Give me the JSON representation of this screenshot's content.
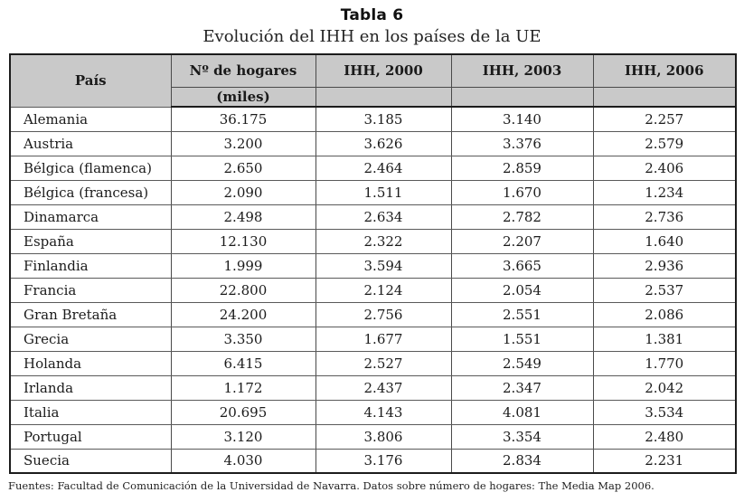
{
  "title": "Tabla 6",
  "subtitle": "Evolución del IHH en los países de la UE",
  "footer": "Fuentes: Facultad de Comunicación de la Universidad de Navarra. Datos sobre número  de hogares: The Media Map 2006.",
  "colors": {
    "header_bg": "#c9c9c9",
    "outer_border": "#1c1c1c",
    "inner_border": "#4a4a4a"
  },
  "table": {
    "header": {
      "pais": "País",
      "hogares_line1": "Nº de hogares",
      "hogares_line2": "(miles)",
      "ihh2000": "IHH, 2000",
      "ihh2003": "IHH, 2003",
      "ihh2006": "IHH, 2006"
    },
    "rows": [
      {
        "pais": "Alemania",
        "hogares": "36.175",
        "ihh2000": "3.185",
        "ihh2003": "3.140",
        "ihh2006": "2.257"
      },
      {
        "pais": "Austria",
        "hogares": "3.200",
        "ihh2000": "3.626",
        "ihh2003": "3.376",
        "ihh2006": "2.579"
      },
      {
        "pais": "Bélgica (flamenca)",
        "hogares": "2.650",
        "ihh2000": "2.464",
        "ihh2003": "2.859",
        "ihh2006": "2.406"
      },
      {
        "pais": "Bélgica (francesa)",
        "hogares": "2.090",
        "ihh2000": "1.511",
        "ihh2003": "1.670",
        "ihh2006": "1.234"
      },
      {
        "pais": "Dinamarca",
        "hogares": "2.498",
        "ihh2000": "2.634",
        "ihh2003": "2.782",
        "ihh2006": "2.736"
      },
      {
        "pais": "España",
        "hogares": "12.130",
        "ihh2000": "2.322",
        "ihh2003": "2.207",
        "ihh2006": "1.640"
      },
      {
        "pais": "Finlandia",
        "hogares": "1.999",
        "ihh2000": "3.594",
        "ihh2003": "3.665",
        "ihh2006": "2.936"
      },
      {
        "pais": "Francia",
        "hogares": "22.800",
        "ihh2000": "2.124",
        "ihh2003": "2.054",
        "ihh2006": "2.537"
      },
      {
        "pais": "Gran Bretaña",
        "hogares": "24.200",
        "ihh2000": "2.756",
        "ihh2003": "2.551",
        "ihh2006": "2.086"
      },
      {
        "pais": "Grecia",
        "hogares": "3.350",
        "ihh2000": "1.677",
        "ihh2003": "1.551",
        "ihh2006": "1.381"
      },
      {
        "pais": "Holanda",
        "hogares": "6.415",
        "ihh2000": "2.527",
        "ihh2003": "2.549",
        "ihh2006": "1.770"
      },
      {
        "pais": "Irlanda",
        "hogares": "1.172",
        "ihh2000": "2.437",
        "ihh2003": "2.347",
        "ihh2006": "2.042"
      },
      {
        "pais": "Italia",
        "hogares": "20.695",
        "ihh2000": "4.143",
        "ihh2003": "4.081",
        "ihh2006": "3.534"
      },
      {
        "pais": "Portugal",
        "hogares": "3.120",
        "ihh2000": "3.806",
        "ihh2003": "3.354",
        "ihh2006": "2.480"
      },
      {
        "pais": "Suecia",
        "hogares": "4.030",
        "ihh2000": "3.176",
        "ihh2003": "2.834",
        "ihh2006": "2.231"
      }
    ]
  }
}
